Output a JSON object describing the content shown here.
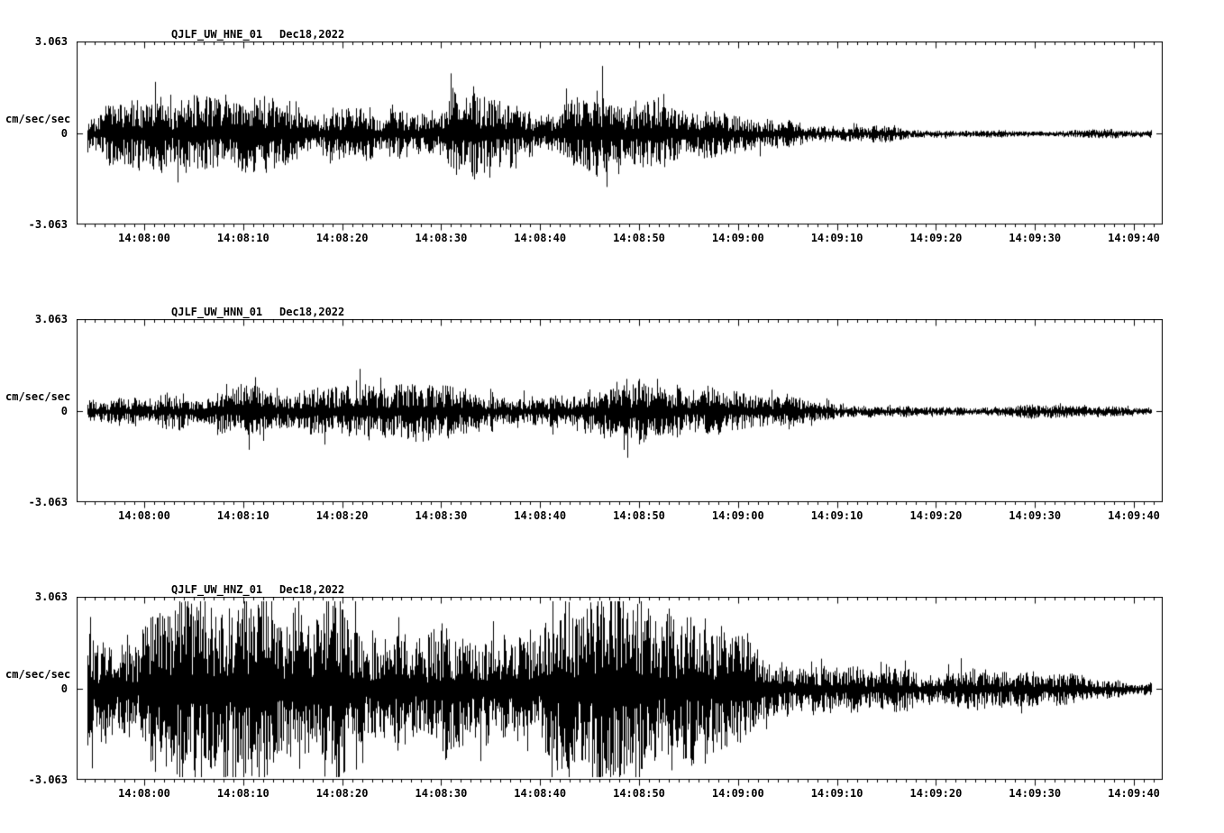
{
  "page": {
    "background": "#ffffff",
    "trace_color": "#000000"
  },
  "chart_data": [
    {
      "type": "line",
      "title": "QJLF_UW_HNE_01",
      "date_label": "Dec18,2022",
      "ylabel": "cm/sec/sec",
      "y_ticks": [
        "3.063",
        "0",
        "-3.063"
      ],
      "ylim": [
        -3.063,
        3.063
      ],
      "grid": false,
      "legend": "none",
      "x_tick_labels": [
        "14:08:00",
        "14:08:10",
        "14:08:20",
        "14:08:30",
        "14:08:40",
        "14:08:50",
        "14:09:00",
        "14:09:10",
        "14:09:20",
        "14:09:30",
        "14:09:40"
      ],
      "seed": 7,
      "envelope": {
        "pos": [
          0,
          0.03,
          0.08,
          0.15,
          0.22,
          0.3,
          0.38,
          0.45,
          0.5,
          0.54,
          0.58,
          0.63,
          0.68,
          0.75,
          0.82,
          0.9,
          1.0
        ],
        "amp": [
          0.6,
          0.8,
          0.9,
          0.85,
          0.9,
          0.95,
          1.05,
          0.9,
          1.0,
          0.85,
          0.55,
          0.4,
          0.3,
          0.22,
          0.16,
          0.13,
          0.1
        ]
      }
    },
    {
      "type": "line",
      "title": "QJLF_UW_HNN_01",
      "date_label": "Dec18,2022",
      "ylabel": "cm/sec/sec",
      "y_ticks": [
        "3.063",
        "0",
        "-3.063"
      ],
      "ylim": [
        -3.063,
        3.063
      ],
      "grid": false,
      "legend": "none",
      "x_tick_labels": [
        "14:08:00",
        "14:08:10",
        "14:08:20",
        "14:08:30",
        "14:08:40",
        "14:08:50",
        "14:09:00",
        "14:09:10",
        "14:09:20",
        "14:09:30",
        "14:09:40"
      ],
      "seed": 13,
      "envelope": {
        "pos": [
          0,
          0.05,
          0.12,
          0.2,
          0.3,
          0.4,
          0.48,
          0.55,
          0.6,
          0.65,
          0.72,
          0.8,
          0.9,
          1.0
        ],
        "amp": [
          0.45,
          0.55,
          0.6,
          0.6,
          0.65,
          0.7,
          0.75,
          0.7,
          0.55,
          0.4,
          0.28,
          0.2,
          0.15,
          0.12
        ]
      }
    },
    {
      "type": "line",
      "title": "QJLF_UW_HNZ_01",
      "date_label": "Dec18,2022",
      "ylabel": "cm/sec/sec",
      "y_ticks": [
        "3.063",
        "0",
        "-3.063"
      ],
      "ylim": [
        -3.063,
        3.063
      ],
      "grid": false,
      "legend": "none",
      "x_tick_labels": [
        "14:08:00",
        "14:08:10",
        "14:08:20",
        "14:08:30",
        "14:08:40",
        "14:08:50",
        "14:09:00",
        "14:09:10",
        "14:09:20",
        "14:09:30",
        "14:09:40"
      ],
      "seed": 42,
      "envelope": {
        "pos": [
          0,
          0.04,
          0.1,
          0.2,
          0.3,
          0.38,
          0.45,
          0.52,
          0.56,
          0.6,
          0.64,
          0.68,
          0.72,
          0.78,
          0.85,
          0.92,
          1.0
        ],
        "amp": [
          1.9,
          2.2,
          2.3,
          2.4,
          2.5,
          2.6,
          2.5,
          2.45,
          2.2,
          1.6,
          1.2,
          0.95,
          0.8,
          0.6,
          0.45,
          0.35,
          0.24
        ]
      }
    }
  ]
}
